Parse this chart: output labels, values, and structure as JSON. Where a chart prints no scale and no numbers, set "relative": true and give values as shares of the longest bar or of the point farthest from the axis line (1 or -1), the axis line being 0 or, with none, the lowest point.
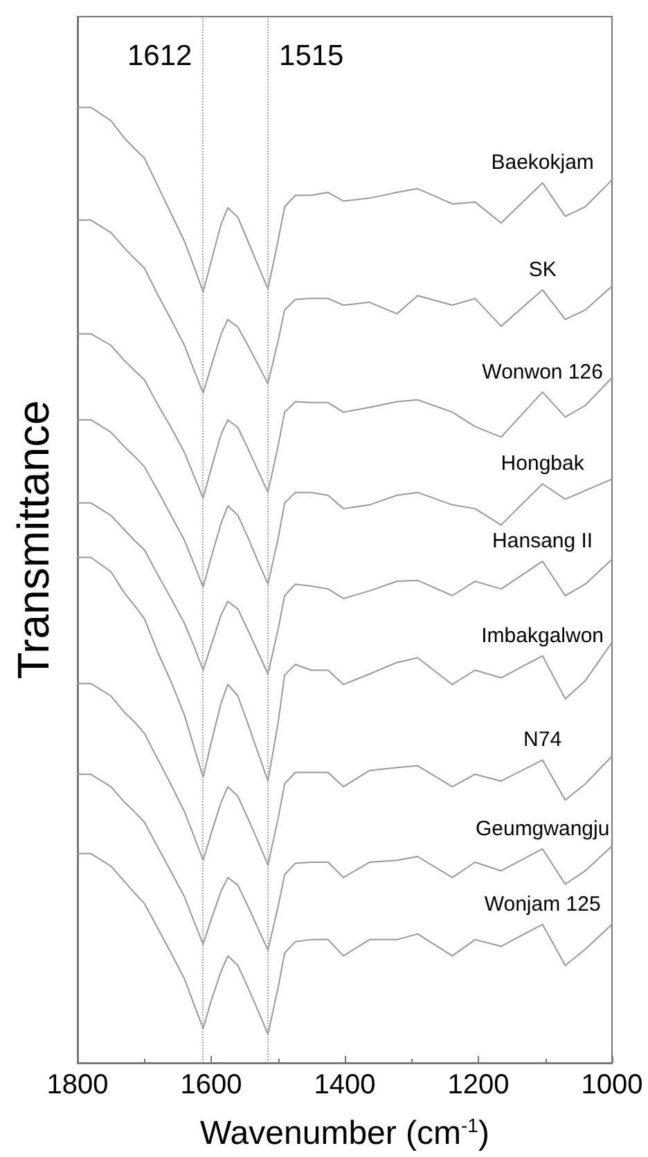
{
  "chart_data": {
    "type": "line",
    "relative": true,
    "xlabel": "Wavenumber (cm$^{-1}$)",
    "ylabel": "Transmittance",
    "x": [
      1800,
      1780,
      1750,
      1730,
      1715,
      1700,
      1680,
      1660,
      1640,
      1625,
      1612,
      1600,
      1585,
      1575,
      1560,
      1545,
      1530,
      1515,
      1500,
      1490,
      1474,
      1450,
      1425,
      1402,
      1363,
      1322,
      1291,
      1239,
      1205,
      1166,
      1104,
      1070,
      1040,
      1000
    ],
    "xlim": [
      1800,
      1000
    ],
    "xticks": [
      1800,
      1600,
      1400,
      1200,
      1000
    ],
    "grid": false,
    "legend": false,
    "marker": "none",
    "line_style": "solid",
    "ref_lines": [
      {
        "axis": "x",
        "value": 1612,
        "label": "1612",
        "color": "#aaaaaa",
        "line_style": "dotted"
      },
      {
        "axis": "x",
        "value": 1515,
        "label": "1515",
        "color": "#aaaaaa",
        "line_style": "dotted"
      }
    ],
    "series": [
      {
        "name": "Baekokjam",
        "color": "#999999",
        "values": [
          1.0,
          1.0,
          0.986,
          0.968,
          0.957,
          0.947,
          0.918,
          0.889,
          0.86,
          0.832,
          0.807,
          0.839,
          0.878,
          0.895,
          0.885,
          0.86,
          0.835,
          0.81,
          0.86,
          0.896,
          0.908,
          0.908,
          0.911,
          0.902,
          0.905,
          0.911,
          0.915,
          0.899,
          0.901,
          0.879,
          0.921,
          0.886,
          0.896,
          0.924
        ]
      },
      {
        "name": "SK",
        "color": "#999999",
        "values": [
          0.882,
          0.882,
          0.869,
          0.853,
          0.842,
          0.832,
          0.804,
          0.778,
          0.751,
          0.724,
          0.701,
          0.729,
          0.763,
          0.778,
          0.77,
          0.751,
          0.731,
          0.711,
          0.755,
          0.788,
          0.799,
          0.8,
          0.8,
          0.793,
          0.796,
          0.784,
          0.803,
          0.793,
          0.8,
          0.771,
          0.809,
          0.778,
          0.788,
          0.813
        ]
      },
      {
        "name": "Wonwon 126",
        "color": "#999999",
        "values": [
          0.763,
          0.763,
          0.751,
          0.735,
          0.725,
          0.715,
          0.689,
          0.665,
          0.639,
          0.613,
          0.591,
          0.622,
          0.658,
          0.673,
          0.665,
          0.643,
          0.62,
          0.597,
          0.645,
          0.681,
          0.692,
          0.691,
          0.691,
          0.681,
          0.686,
          0.692,
          0.694,
          0.681,
          0.666,
          0.655,
          0.702,
          0.676,
          0.688,
          0.717
        ]
      },
      {
        "name": "Hongbak",
        "color": "#999999",
        "values": [
          0.673,
          0.673,
          0.66,
          0.645,
          0.635,
          0.624,
          0.599,
          0.573,
          0.547,
          0.521,
          0.498,
          0.529,
          0.565,
          0.583,
          0.573,
          0.55,
          0.525,
          0.501,
          0.548,
          0.586,
          0.597,
          0.597,
          0.594,
          0.58,
          0.584,
          0.594,
          0.597,
          0.584,
          0.58,
          0.563,
          0.606,
          0.59,
          0.599,
          0.611
        ]
      },
      {
        "name": "Hansang II",
        "color": "#999999",
        "values": [
          0.586,
          0.586,
          0.573,
          0.558,
          0.547,
          0.537,
          0.511,
          0.486,
          0.46,
          0.435,
          0.411,
          0.437,
          0.469,
          0.483,
          0.475,
          0.453,
          0.43,
          0.407,
          0.453,
          0.489,
          0.501,
          0.499,
          0.496,
          0.486,
          0.494,
          0.504,
          0.505,
          0.489,
          0.504,
          0.496,
          0.525,
          0.489,
          0.501,
          0.527
        ]
      },
      {
        "name": "Imbakgalwon",
        "color": "#999999",
        "values": [
          0.529,
          0.529,
          0.514,
          0.492,
          0.479,
          0.465,
          0.43,
          0.399,
          0.364,
          0.329,
          0.299,
          0.335,
          0.377,
          0.396,
          0.384,
          0.355,
          0.325,
          0.295,
          0.355,
          0.406,
          0.417,
          0.411,
          0.411,
          0.396,
          0.407,
          0.419,
          0.424,
          0.396,
          0.411,
          0.403,
          0.426,
          0.381,
          0.4,
          0.44
        ]
      },
      {
        "name": "N74",
        "color": "#999999",
        "values": [
          0.397,
          0.397,
          0.384,
          0.367,
          0.357,
          0.345,
          0.318,
          0.291,
          0.263,
          0.236,
          0.212,
          0.24,
          0.273,
          0.289,
          0.279,
          0.256,
          0.232,
          0.207,
          0.255,
          0.292,
          0.304,
          0.304,
          0.304,
          0.289,
          0.306,
          0.309,
          0.311,
          0.289,
          0.302,
          0.295,
          0.317,
          0.275,
          0.292,
          0.321
        ]
      },
      {
        "name": "Geumgwangju",
        "color": "#999999",
        "values": [
          0.302,
          0.302,
          0.289,
          0.273,
          0.263,
          0.252,
          0.226,
          0.2,
          0.174,
          0.147,
          0.124,
          0.15,
          0.18,
          0.194,
          0.186,
          0.164,
          0.141,
          0.118,
          0.163,
          0.197,
          0.209,
          0.21,
          0.21,
          0.194,
          0.21,
          0.212,
          0.216,
          0.194,
          0.21,
          0.201,
          0.224,
          0.187,
          0.201,
          0.227
        ]
      },
      {
        "name": "Wonjam 125",
        "color": "#999999",
        "values": [
          0.219,
          0.219,
          0.206,
          0.19,
          0.178,
          0.167,
          0.141,
          0.115,
          0.088,
          0.06,
          0.036,
          0.065,
          0.096,
          0.112,
          0.102,
          0.079,
          0.055,
          0.03,
          0.078,
          0.115,
          0.127,
          0.129,
          0.129,
          0.112,
          0.129,
          0.129,
          0.135,
          0.112,
          0.129,
          0.122,
          0.145,
          0.102,
          0.119,
          0.145
        ]
      }
    ]
  }
}
